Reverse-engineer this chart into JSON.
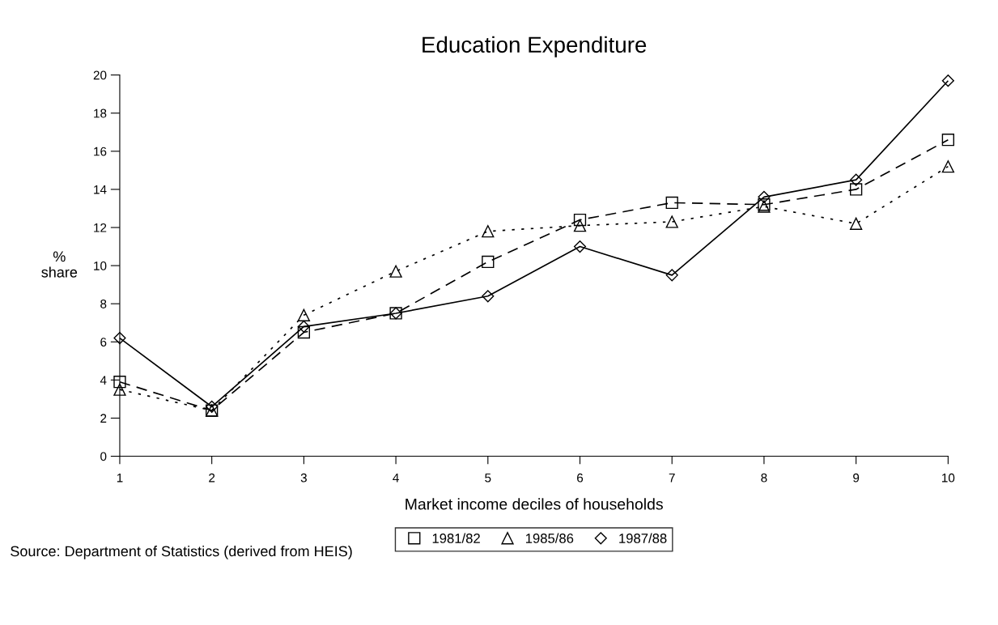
{
  "chart_data": {
    "type": "line",
    "title": "Education Expenditure",
    "xlabel": "Market income deciles of households",
    "ylabel": "%\nshare",
    "x": [
      1,
      2,
      3,
      4,
      5,
      6,
      7,
      8,
      9,
      10
    ],
    "series": [
      {
        "name": "1981/82",
        "color": "#000000",
        "marker": "square",
        "line_style": "dashed",
        "values": [
          3.9,
          2.4,
          6.5,
          7.5,
          10.2,
          12.4,
          13.3,
          13.2,
          14.0,
          16.6
        ]
      },
      {
        "name": "1985/86",
        "color": "#000000",
        "marker": "triangle",
        "line_style": "dotted",
        "values": [
          3.5,
          2.4,
          7.4,
          9.7,
          11.8,
          12.1,
          12.3,
          13.1,
          12.2,
          15.2
        ]
      },
      {
        "name": "1987/88",
        "color": "#000000",
        "marker": "diamond",
        "line_style": "solid",
        "values": [
          6.2,
          2.6,
          6.8,
          7.5,
          8.4,
          11.0,
          9.5,
          13.6,
          14.5,
          19.7
        ]
      }
    ],
    "xlim": [
      1,
      10
    ],
    "xticks": [
      1,
      2,
      3,
      4,
      5,
      6,
      7,
      8,
      9,
      10
    ],
    "ylim": [
      0,
      20
    ],
    "yticks": [
      0,
      2,
      4,
      6,
      8,
      10,
      12,
      14,
      16,
      18,
      20
    ],
    "grid": false,
    "legend": "bottom",
    "annotations": [
      "Source: Department of Statistics (derived from HEIS)"
    ]
  }
}
